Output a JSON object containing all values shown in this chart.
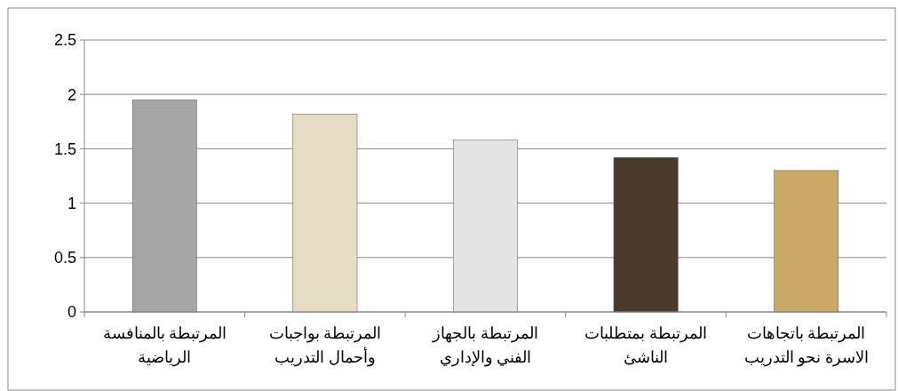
{
  "chart_data": {
    "type": "bar",
    "categories": [
      "المرتبطة بالمنافسة\nالرياضية",
      "المرتبطة بواجبات\nوأحمال التدريب",
      "المرتبطة بالجهاز\nالفني والإداري",
      "المرتبطة بمتطلبات\nالناشئ",
      "المرتبطة باتجاهات\nالاسرة نحو التدريب"
    ],
    "values": [
      1.95,
      1.82,
      1.58,
      1.42,
      1.3
    ],
    "colors": [
      "#a6a6a6",
      "#e6dcc4",
      "#e4e4e4",
      "#4a3a2c",
      "#c9a868"
    ],
    "ylim": [
      0,
      2.5
    ],
    "yticks": [
      0,
      0.5,
      1,
      1.5,
      2,
      2.5
    ],
    "grid": "y"
  }
}
